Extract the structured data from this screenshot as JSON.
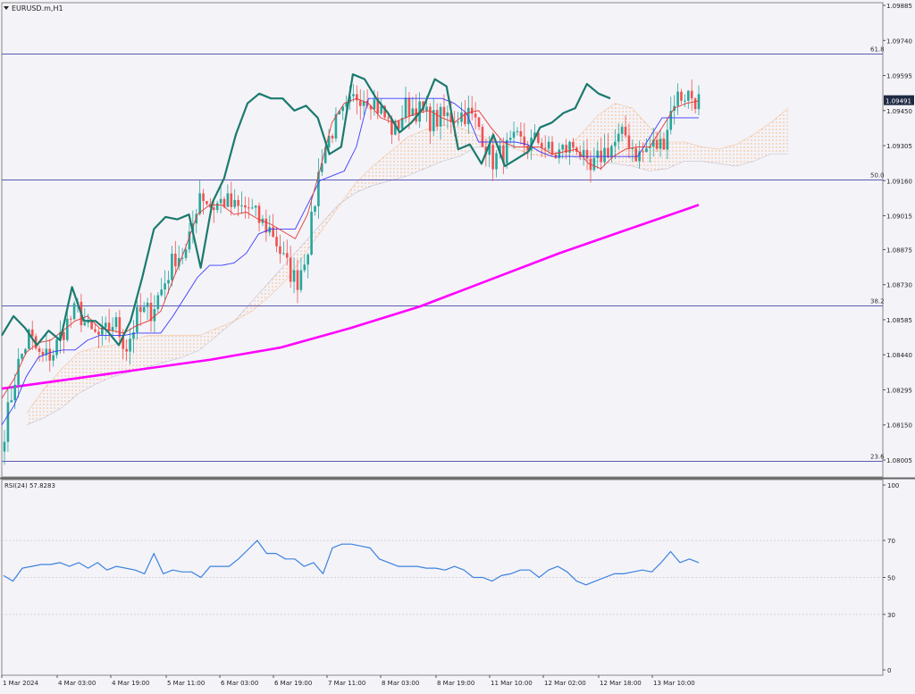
{
  "window": {
    "symbol_label": "EURUSD.m,H1",
    "current_price": "1.09491"
  },
  "colors": {
    "background": "#f4f3f8",
    "bull_candle": "#26a69a",
    "bear_candle": "#ef5350",
    "tenkan": "#e53935",
    "kijun": "#3a3aff",
    "chikou": "#1b7a6e",
    "ma": "#ff00ff",
    "kumo": "#f4a460",
    "fib": "#5b5bb3",
    "rsi": "#3b82e0"
  },
  "chart_data": [
    {
      "type": "candlestick",
      "symbol": "EURUSD.m",
      "timeframe": "H1",
      "ylim": [
        1.08005,
        1.09885
      ],
      "y_ticks": [
        "1.09885",
        "1.09740",
        "1.09595",
        "1.09450",
        "1.09305",
        "1.09160",
        "1.09015",
        "1.08875",
        "1.08730",
        "1.08585",
        "1.08440",
        "1.08295",
        "1.08150",
        "1.08005"
      ],
      "x_ticks": [
        "1 Mar 2024",
        "4 Mar 03:00",
        "4 Mar 19:00",
        "5 Mar 11:00",
        "6 Mar 03:00",
        "6 Mar 19:00",
        "7 Mar 11:00",
        "8 Mar 03:00",
        "8 Mar 19:00",
        "11 Mar 10:00",
        "12 Mar 02:00",
        "12 Mar 18:00",
        "13 Mar 10:00"
      ],
      "fib_levels": [
        {
          "label": "61.8",
          "price": 1.09685
        },
        {
          "label": "50.0",
          "price": 1.09165
        },
        {
          "label": "38.2",
          "price": 1.08645
        },
        {
          "label": "23.6",
          "price": 1.08
        }
      ],
      "close_path": [
        1.0813,
        1.0838,
        1.0852,
        1.0842,
        1.0845,
        1.0856,
        1.0863,
        1.0853,
        1.0851,
        1.0858,
        1.0847,
        1.0861,
        1.0862,
        1.0872,
        1.0885,
        1.0886,
        1.0912,
        1.0905,
        1.0908,
        1.0904,
        1.0905,
        1.0899,
        1.0895,
        1.0882,
        1.0874,
        1.0891,
        1.0926,
        1.0938,
        1.0944,
        1.0952,
        1.0951,
        1.0944,
        1.0936,
        1.0947,
        1.0945,
        1.0941,
        1.0942,
        1.0943,
        1.0944,
        1.0938,
        1.0924,
        1.0928,
        1.0932,
        1.0931,
        1.0933,
        1.0926,
        1.0929,
        1.0931,
        1.0918,
        1.0927,
        1.0931,
        1.0935,
        1.0926,
        1.093,
        1.0931,
        1.095,
        1.0952,
        1.0949
      ],
      "ichimoku": {
        "tenkan": [
          1.0826,
          1.0834,
          1.0845,
          1.0849,
          1.085,
          1.0854,
          1.0858,
          1.086,
          1.0855,
          1.0854,
          1.0853,
          1.0856,
          1.0858,
          1.0862,
          1.0875,
          1.0888,
          1.0902,
          1.0906,
          1.0906,
          1.0902,
          1.0903,
          1.09,
          1.0898,
          1.0895,
          1.0892,
          1.0902,
          1.092,
          1.094,
          1.0948,
          1.095,
          1.0948,
          1.0942,
          1.094,
          1.0942,
          1.0944,
          1.0945,
          1.0942,
          1.094,
          1.0944,
          1.0945,
          1.0938,
          1.0932,
          1.093,
          1.093,
          1.093,
          1.0927,
          1.0928,
          1.0929,
          1.0923,
          1.0921,
          1.0926,
          1.0929,
          1.093,
          1.093,
          1.0938,
          1.0946,
          1.0948,
          1.0949
        ],
        "kijun": [
          1.0815,
          1.0823,
          1.0835,
          1.0843,
          1.0845,
          1.0846,
          1.0846,
          1.085,
          1.0852,
          1.0852,
          1.0852,
          1.0853,
          1.0853,
          1.0853,
          1.086,
          1.0868,
          1.0876,
          1.0881,
          1.0881,
          1.0882,
          1.0886,
          1.0894,
          1.0896,
          1.0896,
          1.0896,
          1.0906,
          1.0916,
          1.0918,
          1.092,
          1.093,
          1.095,
          1.095,
          1.095,
          1.095,
          1.095,
          1.095,
          1.095,
          1.0948,
          1.0944,
          1.0932,
          1.0932,
          1.0932,
          1.0932,
          1.0931,
          1.0928,
          1.0926,
          1.0926,
          1.0926,
          1.0926,
          1.0926,
          1.0926,
          1.0926,
          1.0926,
          1.0934,
          1.0942,
          1.0942,
          1.0942,
          1.0942
        ],
        "chikou": [
          1.0852,
          1.086,
          1.0855,
          1.0848,
          1.0854,
          1.085,
          1.0872,
          1.0858,
          1.0858,
          1.0854,
          1.0848,
          1.0858,
          1.0876,
          1.0896,
          1.0901,
          1.09,
          1.0902,
          1.088,
          1.0907,
          1.0917,
          1.0935,
          1.0948,
          1.0952,
          1.095,
          1.095,
          1.0945,
          1.0947,
          1.0942,
          1.0927,
          1.093,
          1.096,
          1.0958,
          1.095,
          1.0944,
          1.0936,
          1.094,
          1.0946,
          1.0958,
          1.0955,
          1.0929,
          1.0931,
          1.0923,
          1.0935,
          1.0922,
          1.0925,
          1.0928,
          1.0938,
          1.094,
          1.0944,
          1.0946,
          1.0956,
          1.0952,
          1.095
        ],
        "span_a": [
          1.082,
          1.083,
          1.0838,
          1.0845,
          1.0847,
          1.0848,
          1.085,
          1.0852,
          1.0852,
          1.0852,
          1.0852,
          1.0855,
          1.0858,
          1.0862,
          1.0868,
          1.0875,
          1.0885,
          1.0895,
          1.0905,
          1.0915,
          1.0922,
          1.0928,
          1.0934,
          1.0937,
          1.0939,
          1.0938,
          1.0935,
          1.0933,
          1.093,
          1.0927,
          1.0926,
          1.0928,
          1.0935,
          1.0943,
          1.0948,
          1.0946,
          1.0938,
          1.0932,
          1.0932,
          1.093,
          1.0929,
          1.0931,
          1.0935,
          1.094,
          1.0946
        ],
        "span_b": [
          1.0815,
          1.0818,
          1.0822,
          1.0828,
          1.0832,
          1.0835,
          1.0837,
          1.0839,
          1.0841,
          1.0843,
          1.0846,
          1.0852,
          1.0858,
          1.0866,
          1.0874,
          1.0882,
          1.089,
          1.0898,
          1.0906,
          1.0911,
          1.0914,
          1.0916,
          1.0918,
          1.0921,
          1.0924,
          1.0926,
          1.093,
          1.093,
          1.093,
          1.093,
          1.0929,
          1.0927,
          1.0925,
          1.0924,
          1.0923,
          1.0922,
          1.092,
          1.0921,
          1.0924,
          1.0924,
          1.0923,
          1.0922,
          1.0924,
          1.0927,
          1.0927
        ]
      },
      "moving_average": [
        1.083,
        1.0834,
        1.0838,
        1.0842,
        1.0847,
        1.0855,
        1.0864,
        1.0875,
        1.0886,
        1.0896,
        1.0906
      ]
    },
    {
      "type": "line",
      "indicator": "RSI",
      "title": "RSI(24) 57.8283",
      "ylim": [
        0,
        100
      ],
      "y_ticks": [
        "100",
        "70",
        "50",
        "30",
        "0"
      ],
      "levels": [
        70,
        50,
        30
      ],
      "values": [
        51,
        48,
        55,
        56,
        57,
        57,
        58,
        56,
        58,
        55,
        58,
        54,
        56,
        55,
        54,
        52,
        63,
        52,
        54,
        53,
        53,
        50,
        56,
        56,
        56,
        60,
        65,
        70,
        63,
        63,
        60,
        60,
        56,
        58,
        52,
        66,
        68,
        68,
        67,
        66,
        60,
        58,
        56,
        56,
        56,
        55,
        55,
        54,
        56,
        54,
        50,
        50,
        48,
        51,
        52,
        54,
        54,
        50,
        54,
        56,
        53,
        48,
        46,
        48,
        50,
        52,
        52,
        53,
        54,
        53,
        58,
        64,
        58,
        60,
        58
      ]
    }
  ]
}
